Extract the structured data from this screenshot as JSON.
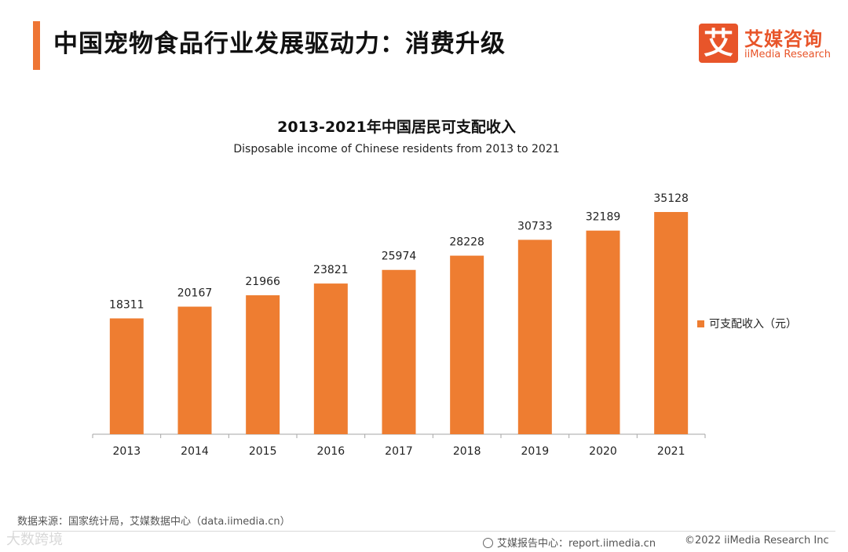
{
  "header": {
    "title": "中国宠物食品行业发展驱动力：消费升级",
    "logo_mark": "艾",
    "logo_cn": "艾媒咨询",
    "logo_en": "iiMedia Research"
  },
  "chart_data": {
    "type": "bar",
    "title": "2013-2021年中国居民可支配收入",
    "subtitle": "Disposable income of Chinese residents from 2013 to 2021",
    "categories": [
      "2013",
      "2014",
      "2015",
      "2016",
      "2017",
      "2018",
      "2019",
      "2020",
      "2021"
    ],
    "series": [
      {
        "name": "可支配收入（元）",
        "values": [
          18311,
          20167,
          21966,
          23821,
          25974,
          28228,
          30733,
          32189,
          35128
        ],
        "color": "#ee7d31"
      }
    ],
    "ylim": [
      0,
      40000
    ],
    "xlabel": "",
    "ylabel": "",
    "grid": false,
    "legend": "right"
  },
  "footer": {
    "source": "数据来源：国家统计局，艾媒数据中心（data.iimedia.cn）",
    "watermark": "大数跨境",
    "report": "艾媒报告中心：report.iimedia.cn",
    "copyright": "©2022  iiMedia Research  Inc"
  }
}
